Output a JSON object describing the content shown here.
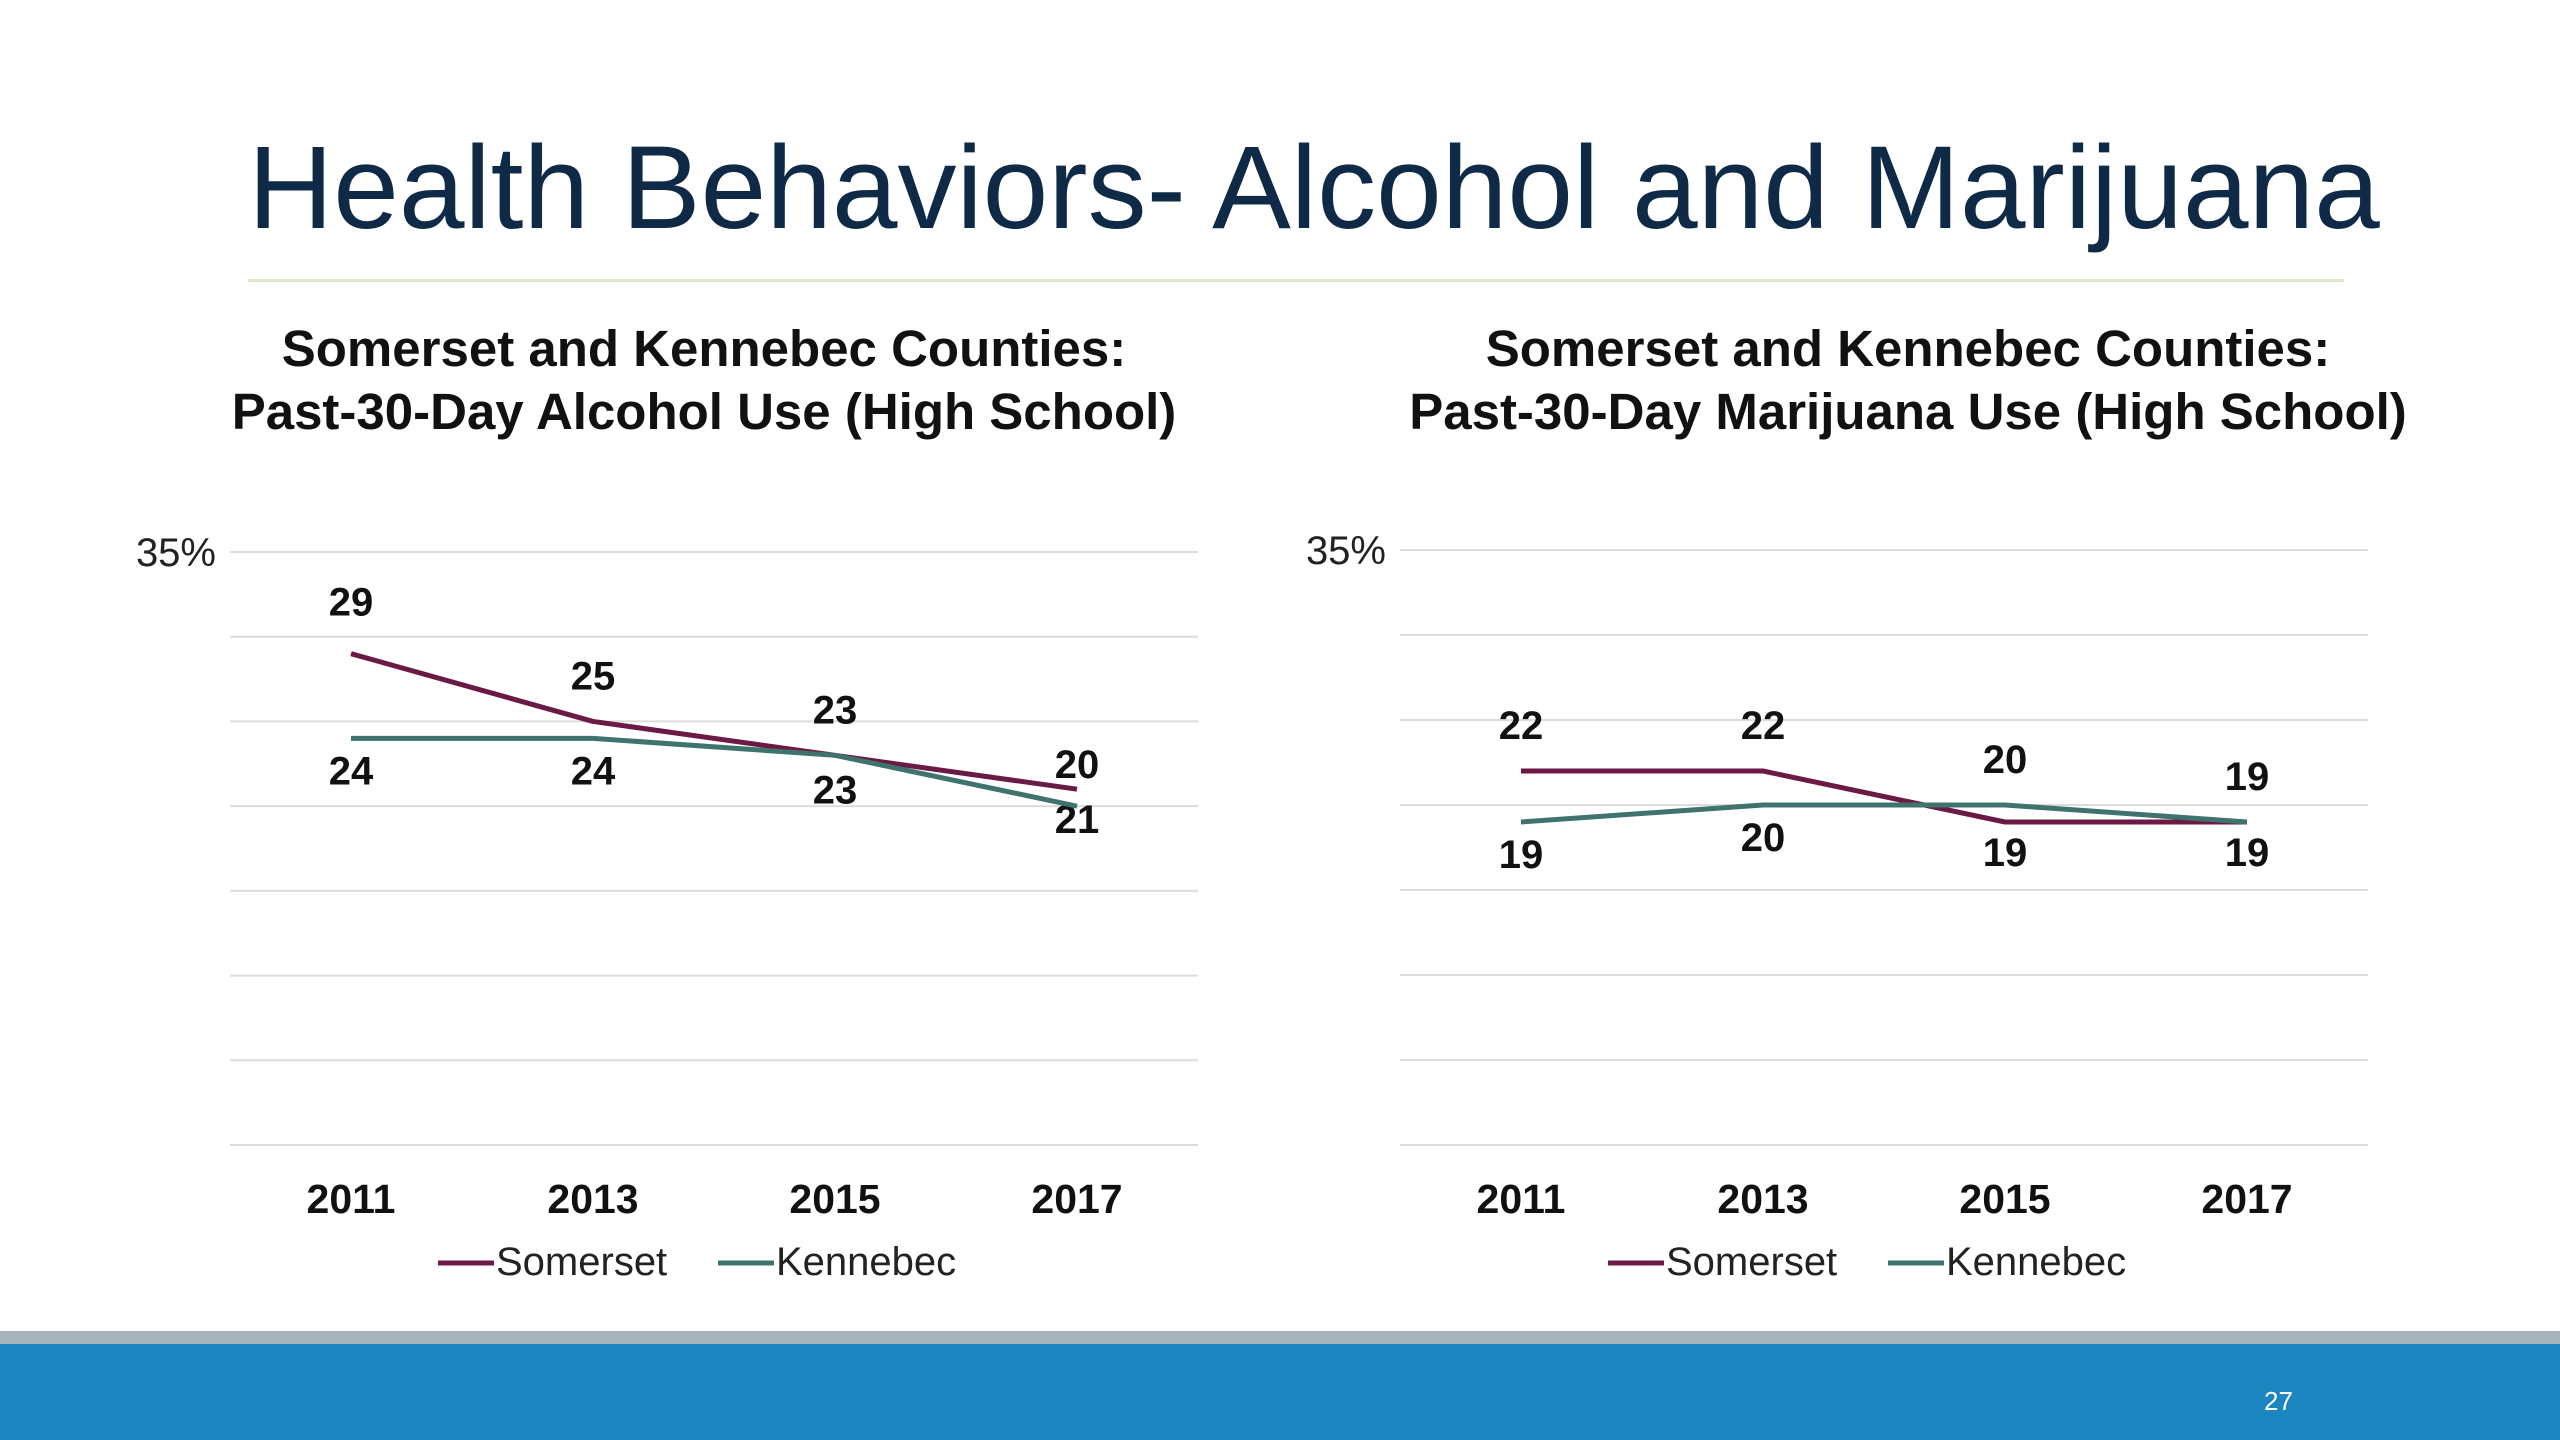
{
  "slide": {
    "title": "Health Behaviors- Alcohol and Marijuana",
    "page_number": "27"
  },
  "colors": {
    "title": "#0f2a47",
    "title_rule": "#d9e9c8",
    "somerset": "#6b1a45",
    "kennebec": "#3f736e",
    "gridline": "#dcdcdc",
    "footer_gray": "#a7b3ba",
    "footer_blue": "#1b86bf"
  },
  "chart_data": [
    {
      "type": "line",
      "title_line1": "Somerset and Kennebec Counties:",
      "title_line2": "Past-30-Day Alcohol Use (High School)",
      "y_top_label": "35%",
      "ylim": [
        0,
        35
      ],
      "grid": true,
      "legend_position": "bottom",
      "categories": [
        "2011",
        "2013",
        "2015",
        "2017"
      ],
      "series": [
        {
          "name": "Somerset",
          "color": "#6b1a45",
          "values": [
            29,
            25,
            23,
            21
          ]
        },
        {
          "name": "Kennebec",
          "color": "#3f736e",
          "values": [
            24,
            24,
            23,
            20
          ]
        }
      ]
    },
    {
      "type": "line",
      "title_line1": "Somerset and Kennebec Counties:",
      "title_line2": "Past-30-Day Marijuana Use (High School)",
      "y_top_label": "35%",
      "ylim": [
        0,
        35
      ],
      "grid": true,
      "legend_position": "bottom",
      "categories": [
        "2011",
        "2013",
        "2015",
        "2017"
      ],
      "series": [
        {
          "name": "Somerset",
          "color": "#6b1a45",
          "values": [
            22,
            22,
            19,
            19
          ]
        },
        {
          "name": "Kennebec",
          "color": "#3f736e",
          "values": [
            19,
            20,
            20,
            19
          ]
        }
      ]
    }
  ]
}
